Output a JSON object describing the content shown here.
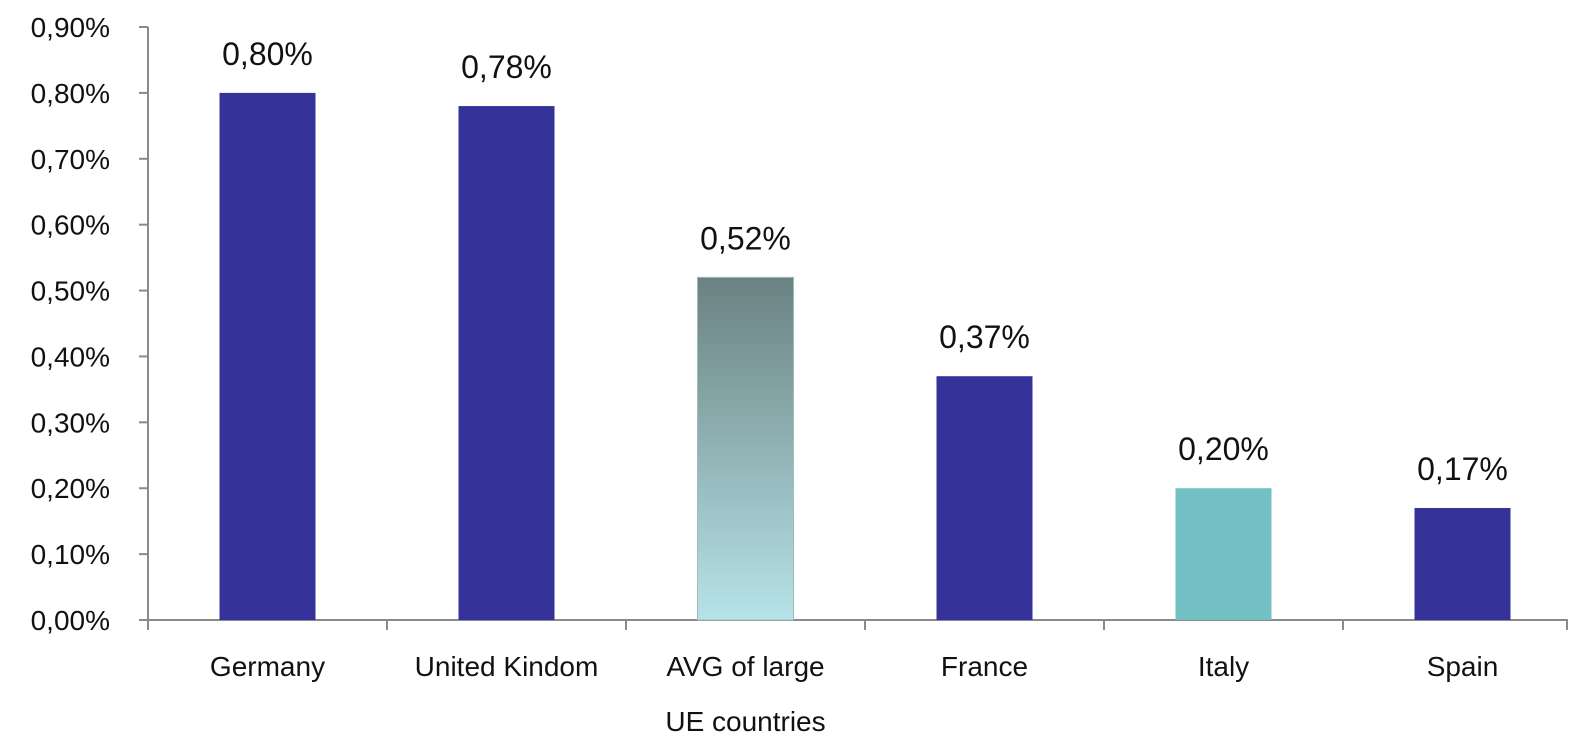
{
  "colors": {
    "bar_primary": "#35329A",
    "bar_average_top": "#6B8282",
    "bar_average_bottom": "#B6E3E8",
    "bar_italy": "#72BFC4",
    "axis": "#8A8A8A",
    "text": "#111111"
  },
  "chart_data": {
    "type": "bar",
    "title": "",
    "xlabel": "",
    "ylabel": "",
    "ylim": [
      0,
      0.9
    ],
    "grid": false,
    "y_ticks": [
      0.0,
      0.1,
      0.2,
      0.3,
      0.4,
      0.5,
      0.6,
      0.7,
      0.8,
      0.9
    ],
    "y_tick_labels": [
      "0,00%",
      "0,10%",
      "0,20%",
      "0,30%",
      "0,40%",
      "0,50%",
      "0,60%",
      "0,70%",
      "0,80%",
      "0,90%"
    ],
    "categories": [
      [
        "Germany"
      ],
      [
        "United Kindom"
      ],
      [
        "AVG of large",
        "UE countries"
      ],
      [
        "France"
      ],
      [
        "Italy"
      ],
      [
        "Spain"
      ]
    ],
    "values": [
      0.8,
      0.78,
      0.52,
      0.37,
      0.2,
      0.17
    ],
    "data_labels": [
      "0,80%",
      "0,78%",
      "0,52%",
      "0,37%",
      "0,20%",
      "0,17%"
    ],
    "bar_fills": [
      "primary",
      "primary",
      "average-gradient",
      "primary",
      "italy",
      "primary"
    ]
  }
}
